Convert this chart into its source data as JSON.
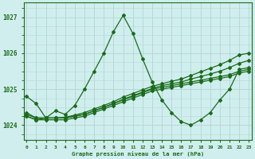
{
  "title": "Graphe pression niveau de la mer (hPa)",
  "xlabel_label": "Graphe pression niveau de la mer (hPa)",
  "background_color": "#d0eeee",
  "grid_color": "#b8d8d8",
  "line_color": "#1a6b1a",
  "ylim": [
    1023.6,
    1027.4
  ],
  "xlim": [
    -0.3,
    23.3
  ],
  "yticks": [
    1024,
    1025,
    1026,
    1027
  ],
  "xtick_labels": [
    "0",
    "1",
    "2",
    "3",
    "4",
    "5",
    "6",
    "7",
    "8",
    "9",
    "10",
    "11",
    "12",
    "13",
    "14",
    "15",
    "16",
    "17",
    "18",
    "19",
    "20",
    "21",
    "22",
    "23"
  ],
  "series": [
    {
      "x": [
        0,
        1,
        2,
        3,
        4,
        5,
        6,
        7,
        8,
        9,
        10,
        11,
        12,
        13,
        14,
        15,
        16,
        17,
        18,
        19,
        20,
        21,
        22,
        23
      ],
      "y": [
        1024.8,
        1024.6,
        1024.2,
        1024.4,
        1024.3,
        1024.55,
        1025.0,
        1025.5,
        1026.0,
        1026.6,
        1027.05,
        1026.55,
        1025.85,
        1025.2,
        1024.7,
        1024.35,
        1024.1,
        1024.0,
        1024.15,
        1024.35,
        1024.7,
        1025.0,
        1025.55,
        1025.6
      ]
    },
    {
      "x": [
        0,
        1,
        2,
        3,
        4,
        5,
        6,
        7,
        8,
        9,
        10,
        11,
        12,
        13,
        14,
        15,
        16,
        17,
        18,
        19,
        20,
        21,
        22,
        23
      ],
      "y": [
        1024.35,
        1024.2,
        1024.2,
        1024.2,
        1024.2,
        1024.25,
        1024.3,
        1024.4,
        1024.5,
        1024.6,
        1024.7,
        1024.8,
        1024.9,
        1025.0,
        1025.05,
        1025.1,
        1025.15,
        1025.2,
        1025.25,
        1025.3,
        1025.35,
        1025.4,
        1025.5,
        1025.55
      ]
    },
    {
      "x": [
        0,
        1,
        2,
        3,
        4,
        5,
        6,
        7,
        8,
        9,
        10,
        11,
        12,
        13,
        14,
        15,
        16,
        17,
        18,
        19,
        20,
        21,
        22,
        23
      ],
      "y": [
        1024.25,
        1024.15,
        1024.15,
        1024.15,
        1024.15,
        1024.2,
        1024.25,
        1024.35,
        1024.45,
        1024.55,
        1024.65,
        1024.75,
        1024.85,
        1024.95,
        1025.0,
        1025.05,
        1025.1,
        1025.15,
        1025.2,
        1025.25,
        1025.3,
        1025.35,
        1025.45,
        1025.5
      ]
    },
    {
      "x": [
        0,
        1,
        2,
        3,
        4,
        5,
        6,
        7,
        8,
        9,
        10,
        11,
        12,
        13,
        14,
        15,
        16,
        17,
        18,
        19,
        20,
        21,
        22,
        23
      ],
      "y": [
        1024.25,
        1024.15,
        1024.2,
        1024.2,
        1024.2,
        1024.25,
        1024.3,
        1024.4,
        1024.5,
        1024.6,
        1024.72,
        1024.82,
        1024.92,
        1025.02,
        1025.1,
        1025.15,
        1025.2,
        1025.28,
        1025.35,
        1025.42,
        1025.5,
        1025.6,
        1025.72,
        1025.8
      ]
    },
    {
      "x": [
        0,
        1,
        2,
        3,
        4,
        5,
        6,
        7,
        8,
        9,
        10,
        11,
        12,
        13,
        14,
        15,
        16,
        17,
        18,
        19,
        20,
        21,
        22,
        23
      ],
      "y": [
        1024.3,
        1024.2,
        1024.2,
        1024.2,
        1024.22,
        1024.28,
        1024.35,
        1024.45,
        1024.55,
        1024.65,
        1024.78,
        1024.88,
        1024.98,
        1025.08,
        1025.15,
        1025.22,
        1025.28,
        1025.38,
        1025.48,
        1025.58,
        1025.68,
        1025.8,
        1025.95,
        1026.0
      ]
    }
  ]
}
